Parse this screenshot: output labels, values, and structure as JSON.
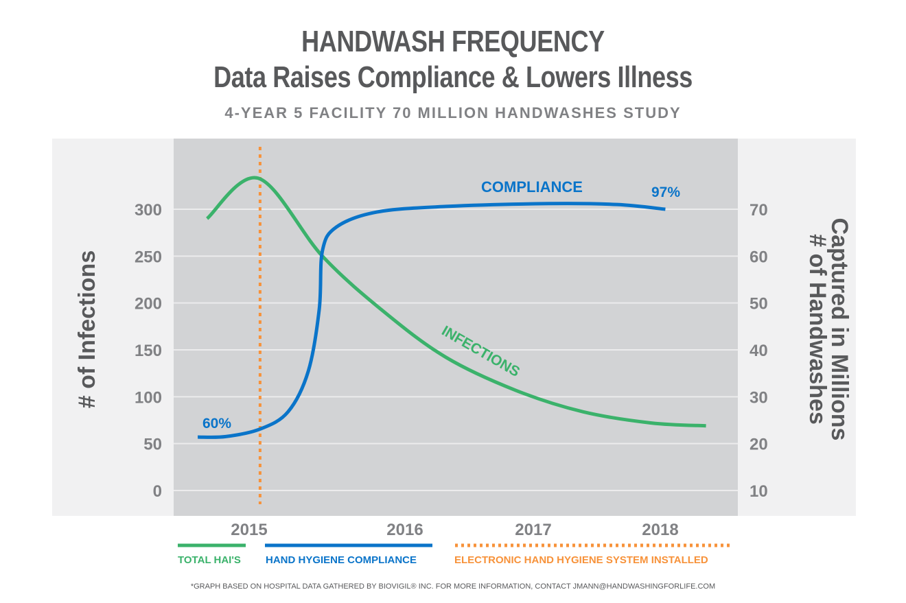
{
  "chart_data": {
    "type": "line",
    "title": "HANDWASH FREQUENCY",
    "subtitle": "Data Raises Compliance & Lowers Illness",
    "subsubtitle": "4-YEAR 5 FACILITY 70 MILLION HANDWASHES STUDY",
    "ylabel": "# of Infections",
    "ylabel_right": "# of Handwashes Captured in Millions",
    "x_ticks": [
      "2015",
      "2016",
      "2017",
      "2018"
    ],
    "y_ticks": [
      "0",
      "50",
      "100",
      "150",
      "200",
      "250",
      "300"
    ],
    "y_right_ticks": [
      "10",
      "20",
      "30",
      "40",
      "50",
      "60",
      "70"
    ],
    "ylim": [
      0,
      300
    ],
    "ylim_right": [
      10,
      70
    ],
    "grid": true,
    "legend_placement": "bottom",
    "series": [
      {
        "name": "TOTAL HAI'S",
        "axis": "left",
        "color": "#3bb26b",
        "x": [
          2014.73,
          2015.06,
          2015.47,
          2015.87,
          2016.32,
          2016.86,
          2017.39,
          2017.93,
          2018.36
        ],
        "y": [
          290,
          333,
          250,
          190,
          142,
          107,
          84,
          72,
          69
        ]
      },
      {
        "name": "HAND HYGIENE COMPLIANCE",
        "axis": "right",
        "color": "#0a74c9",
        "x": [
          2014.67,
          2014.85,
          2015.07,
          2015.25,
          2015.38,
          2015.45,
          2015.47,
          2015.56,
          2015.82,
          2016.32,
          2017.12,
          2017.66,
          2018.04
        ],
        "y": [
          21.4,
          21.5,
          23.1,
          26.8,
          35.5,
          48.7,
          61.1,
          66.2,
          69.4,
          70.6,
          71.2,
          71.0,
          70.0
        ]
      }
    ],
    "event_line": {
      "name": "ELECTRONIC HAND HYGIENE SYSTEM INSTALLED",
      "x": 2015.07,
      "color": "#f7923a"
    },
    "annotations": {
      "compliance": "COMPLIANCE",
      "infections": "INFECTIONS",
      "start": "60%",
      "end": "97%"
    },
    "footnote": "*GRAPH BASED ON HOSPITAL DATA GATHERED BY BIOVIGIL® INC.  FOR MORE INFORMATION, CONTACT JMANN@HANDWASHINGFORLIFE.COM"
  }
}
